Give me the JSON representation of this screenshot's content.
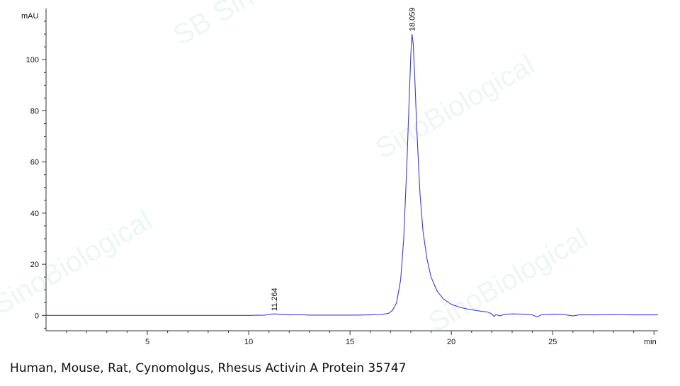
{
  "caption": "Human, Mouse, Rat, Cynomolgus, Rhesus Activin A Protein 35747",
  "watermark": [
    "SB Sino",
    "SinoBiological",
    "SinoBiological",
    "SinoBiological"
  ],
  "colors": {
    "trace": "#3a3adf",
    "axis": "#333333",
    "watermark": "#2f9a6c"
  },
  "chart_data": {
    "type": "line",
    "ylabel": "mAU",
    "xlabel": "min",
    "xlim": [
      0,
      30.2
    ],
    "ylim": [
      -6,
      120
    ],
    "x_ticks": [
      5,
      10,
      15,
      20,
      25
    ],
    "y_ticks": [
      0,
      20,
      40,
      60,
      80,
      100
    ],
    "peaks": [
      {
        "label": "11.264",
        "x": 11.264,
        "y": 0.6
      },
      {
        "label": "18.059",
        "x": 18.059,
        "y": 110
      }
    ],
    "series": [
      {
        "values": [
          [
            0.0,
            0.0
          ],
          [
            5.0,
            0.0
          ],
          [
            10.0,
            0.0
          ],
          [
            10.8,
            0.1
          ],
          [
            11.0,
            0.4
          ],
          [
            11.264,
            0.6
          ],
          [
            11.6,
            0.4
          ],
          [
            12.0,
            0.2
          ],
          [
            12.5,
            0.3
          ],
          [
            13.0,
            0.1
          ],
          [
            14.0,
            0.1
          ],
          [
            15.0,
            0.1
          ],
          [
            16.0,
            0.2
          ],
          [
            16.5,
            0.3
          ],
          [
            16.9,
            0.8
          ],
          [
            17.1,
            2.0
          ],
          [
            17.3,
            5.0
          ],
          [
            17.5,
            14.0
          ],
          [
            17.65,
            30.0
          ],
          [
            17.8,
            58.0
          ],
          [
            17.9,
            80.0
          ],
          [
            18.0,
            102.0
          ],
          [
            18.059,
            110.0
          ],
          [
            18.12,
            106.0
          ],
          [
            18.2,
            92.0
          ],
          [
            18.3,
            72.0
          ],
          [
            18.45,
            48.0
          ],
          [
            18.6,
            33.0
          ],
          [
            18.8,
            22.0
          ],
          [
            19.0,
            15.0
          ],
          [
            19.3,
            9.5
          ],
          [
            19.6,
            6.5
          ],
          [
            20.0,
            4.3
          ],
          [
            20.5,
            3.0
          ],
          [
            21.0,
            2.2
          ],
          [
            21.5,
            1.6
          ],
          [
            21.8,
            1.3
          ],
          [
            22.0,
            0.6
          ],
          [
            22.1,
            -0.4
          ],
          [
            22.2,
            0.3
          ],
          [
            22.4,
            -0.2
          ],
          [
            22.6,
            0.4
          ],
          [
            23.0,
            0.6
          ],
          [
            23.5,
            0.5
          ],
          [
            24.0,
            0.2
          ],
          [
            24.25,
            -0.6
          ],
          [
            24.4,
            0.2
          ],
          [
            25.0,
            0.5
          ],
          [
            25.5,
            0.4
          ],
          [
            26.0,
            -0.2
          ],
          [
            26.3,
            0.2
          ],
          [
            27.0,
            0.2
          ],
          [
            28.0,
            0.3
          ],
          [
            29.0,
            0.2
          ],
          [
            30.2,
            0.2
          ]
        ]
      }
    ]
  }
}
